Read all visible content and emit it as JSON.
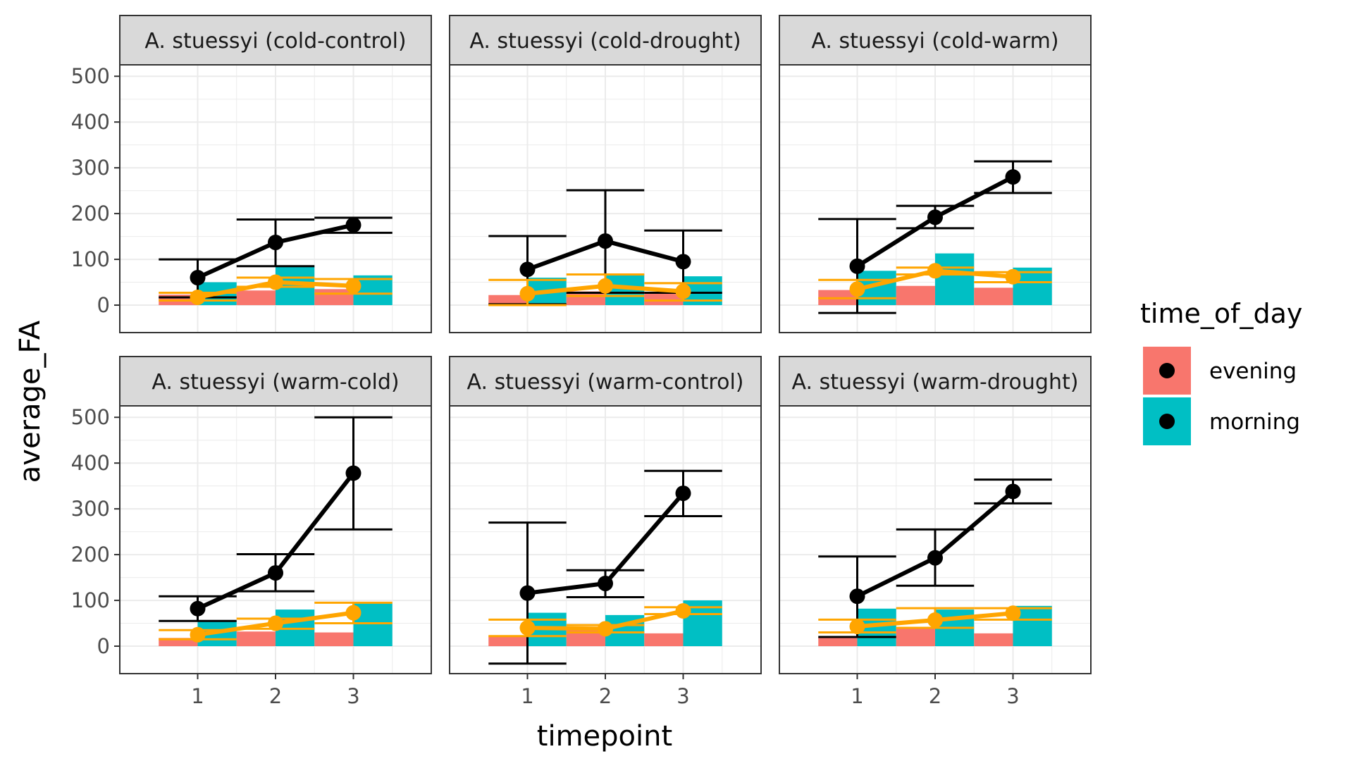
{
  "chart_data": {
    "type": "bar",
    "xlabel": "timepoint",
    "ylabel": "average_FA",
    "ylim": [
      -60,
      525
    ],
    "yticks": [
      0,
      100,
      200,
      300,
      400,
      500
    ],
    "categories": [
      "1",
      "2",
      "3"
    ],
    "legend": {
      "title": "time_of_day",
      "placement": "right",
      "entries": [
        {
          "name": "evening",
          "color": "#F8766D"
        },
        {
          "name": "morning",
          "color": "#00BFC4"
        }
      ]
    },
    "colors": {
      "evening": "#F8766D",
      "morning": "#00BFC4",
      "black_line": "#000000",
      "orange_line": "#FFA500",
      "strip_bg": "#D9D9D9",
      "grid": "#EBEBEB"
    },
    "panels": [
      {
        "strip": "A. stuessyi (cold-control)",
        "bars": {
          "evening": [
            23,
            32,
            35
          ],
          "morning": [
            50,
            85,
            65
          ]
        },
        "black": {
          "mean": [
            60,
            137,
            175
          ],
          "lo": [
            17,
            85,
            158
          ],
          "hi": [
            100,
            187,
            191
          ]
        },
        "orange": {
          "mean": [
            17,
            50,
            42
          ],
          "lo": [
            10,
            40,
            25
          ],
          "hi": [
            27,
            60,
            57
          ]
        }
      },
      {
        "strip": "A. stuessyi (cold-drought)",
        "bars": {
          "evening": [
            22,
            30,
            28
          ],
          "morning": [
            60,
            68,
            63
          ]
        },
        "black": {
          "mean": [
            78,
            140,
            95
          ],
          "lo": [
            2,
            27,
            27
          ],
          "hi": [
            151,
            251,
            163
          ]
        },
        "orange": {
          "mean": [
            25,
            42,
            30
          ],
          "lo": [
            0,
            20,
            10
          ],
          "hi": [
            55,
            67,
            48
          ]
        }
      },
      {
        "strip": "A. stuessyi (cold-warm)",
        "bars": {
          "evening": [
            33,
            42,
            38
          ],
          "morning": [
            75,
            113,
            82
          ]
        },
        "black": {
          "mean": [
            85,
            192,
            280
          ],
          "lo": [
            -17,
            168,
            245
          ],
          "hi": [
            188,
            217,
            314
          ]
        },
        "orange": {
          "mean": [
            35,
            75,
            62
          ],
          "lo": [
            15,
            67,
            50
          ],
          "hi": [
            55,
            82,
            72
          ]
        }
      },
      {
        "strip": "A. stuessyi (warm-cold)",
        "bars": {
          "evening": [
            18,
            32,
            30
          ],
          "morning": [
            55,
            80,
            95
          ]
        },
        "black": {
          "mean": [
            82,
            160,
            378
          ],
          "lo": [
            55,
            120,
            255
          ],
          "hi": [
            109,
            201,
            500
          ]
        },
        "orange": {
          "mean": [
            25,
            50,
            73
          ],
          "lo": [
            15,
            38,
            50
          ],
          "hi": [
            35,
            60,
            95
          ]
        }
      },
      {
        "strip": "A. stuessyi (warm-control)",
        "bars": {
          "evening": [
            22,
            38,
            28
          ],
          "morning": [
            73,
            68,
            100
          ]
        },
        "black": {
          "mean": [
            116,
            137,
            334
          ],
          "lo": [
            -38,
            107,
            284
          ],
          "hi": [
            270,
            166,
            383
          ]
        },
        "orange": {
          "mean": [
            40,
            38,
            77
          ],
          "lo": [
            22,
            30,
            70
          ],
          "hi": [
            58,
            46,
            85
          ]
        }
      },
      {
        "strip": "A. stuessyi (warm-drought)",
        "bars": {
          "evening": [
            20,
            40,
            28
          ],
          "morning": [
            82,
            80,
            88
          ]
        },
        "black": {
          "mean": [
            109,
            193,
            338
          ],
          "lo": [
            20,
            132,
            312
          ],
          "hi": [
            196,
            255,
            364
          ]
        },
        "orange": {
          "mean": [
            43,
            57,
            72
          ],
          "lo": [
            30,
            40,
            58
          ],
          "hi": [
            58,
            83,
            83
          ]
        }
      }
    ]
  }
}
